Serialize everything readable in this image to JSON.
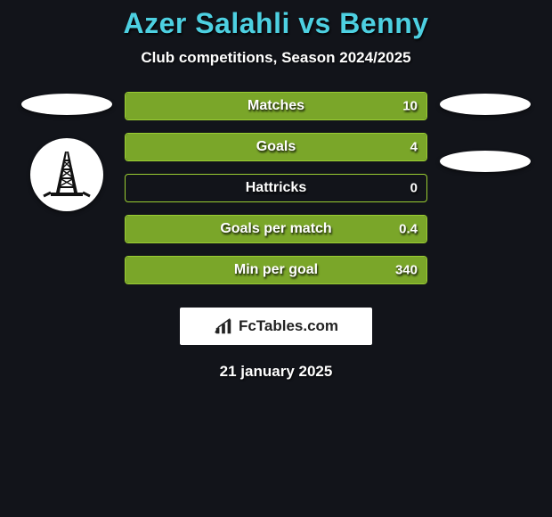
{
  "title": "Azer Salahli vs Benny",
  "subtitle": "Club competitions, Season 2024/2025",
  "colors": {
    "background": "#12141a",
    "title": "#4dd0e1",
    "text": "#ffffff",
    "bar_border": "#9acd32",
    "bar_fill": "#7aa629",
    "oval": "#ffffff",
    "brand_bg": "#ffffff",
    "brand_text": "#222222"
  },
  "stats": [
    {
      "label": "Matches",
      "value": "10",
      "fill_pct": 100
    },
    {
      "label": "Goals",
      "value": "4",
      "fill_pct": 100
    },
    {
      "label": "Hattricks",
      "value": "0",
      "fill_pct": 0
    },
    {
      "label": "Goals per match",
      "value": "0.4",
      "fill_pct": 100
    },
    {
      "label": "Min per goal",
      "value": "340",
      "fill_pct": 100
    }
  ],
  "brand": "FcTables.com",
  "date": "21 january 2025",
  "left_side": {
    "has_oval": true,
    "has_club_badge": true
  },
  "right_side": {
    "ovals": 2
  }
}
